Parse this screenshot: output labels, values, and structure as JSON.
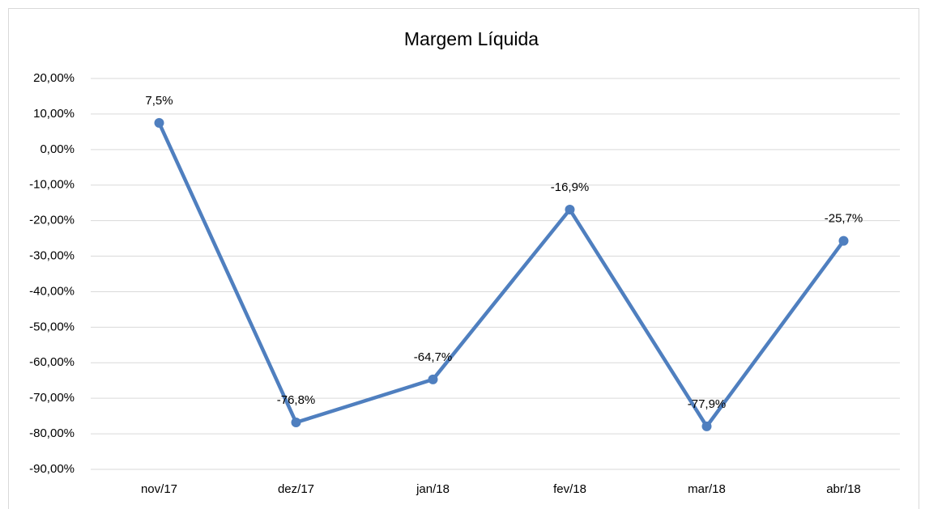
{
  "chart_data": {
    "type": "line",
    "title": "Margem Líquida",
    "categories": [
      "nov/17",
      "dez/17",
      "jan/18",
      "fev/18",
      "mar/18",
      "abr/18"
    ],
    "series": [
      {
        "name": "Margem Líquida",
        "color": "#4f7fbf",
        "values": [
          7.5,
          -76.8,
          -64.7,
          -16.9,
          -77.9,
          -25.7
        ],
        "value_labels": [
          "7,5%",
          "-76,8%",
          "-64,7%",
          "-16,9%",
          "-77,9%",
          "-25,7%"
        ]
      }
    ],
    "ylim": [
      -90,
      20
    ],
    "yticks": [
      {
        "value": -90,
        "label": "-90,00%"
      },
      {
        "value": -80,
        "label": "-80,00%"
      },
      {
        "value": -70,
        "label": "-70,00%"
      },
      {
        "value": -60,
        "label": "-60,00%"
      },
      {
        "value": -50,
        "label": "-50,00%"
      },
      {
        "value": -40,
        "label": "-40,00%"
      },
      {
        "value": -30,
        "label": "-30,00%"
      },
      {
        "value": -20,
        "label": "-20,00%"
      },
      {
        "value": -10,
        "label": "-10,00%"
      },
      {
        "value": 0,
        "label": "0,00%"
      },
      {
        "value": 10,
        "label": "10,00%"
      },
      {
        "value": 20,
        "label": "20,00%"
      }
    ],
    "grid": true
  }
}
